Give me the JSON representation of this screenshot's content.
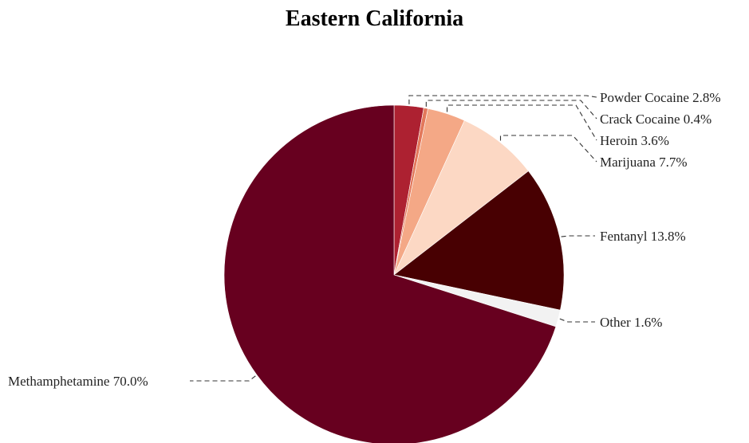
{
  "chart_data": {
    "type": "pie",
    "title": "Eastern California",
    "slices": [
      {
        "label": "Powder Cocaine",
        "value": 2.8,
        "color": "#ad2131"
      },
      {
        "label": "Crack Cocaine",
        "value": 0.4,
        "color": "#e3785b"
      },
      {
        "label": "Heroin",
        "value": 3.6,
        "color": "#f4a886"
      },
      {
        "label": "Marijuana",
        "value": 7.7,
        "color": "#fcd8c4"
      },
      {
        "label": "Fentanyl",
        "value": 13.8,
        "color": "#480002"
      },
      {
        "label": "Other",
        "value": 1.6,
        "color": "#f2f2f2"
      },
      {
        "label": "Methamphetamine",
        "value": 70.0,
        "color": "#67001f"
      }
    ],
    "start_angle": "12 o'clock",
    "direction": "clockwise",
    "legend": "none (labels with leader lines)"
  }
}
